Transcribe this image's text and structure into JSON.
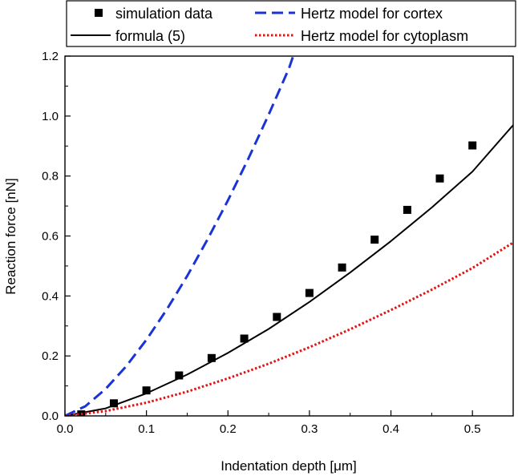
{
  "chart_data": {
    "type": "line",
    "title": "",
    "xlabel_prefix": "Indentation depth [",
    "xlabel_unit": "μm",
    "xlabel_suffix": "]",
    "ylabel": "Reaction force [nN]",
    "xlim": [
      0,
      0.55
    ],
    "ylim": [
      0,
      1.2
    ],
    "xticks": [
      0.0,
      0.1,
      0.2,
      0.3,
      0.4,
      0.5
    ],
    "yticks": [
      0.0,
      0.2,
      0.4,
      0.6,
      0.8,
      1.0,
      1.2
    ],
    "xtick_labels": [
      "0.0",
      "0.1",
      "0.2",
      "0.3",
      "0.4",
      "0.5"
    ],
    "ytick_labels": [
      "0.0",
      "0.2",
      "0.4",
      "0.6",
      "0.8",
      "1.0",
      "1.2"
    ],
    "grid": false,
    "legend_position": "top",
    "series": [
      {
        "name": "simulation data",
        "kind": "markers",
        "color": "#000000",
        "x": [
          0.02,
          0.06,
          0.1,
          0.14,
          0.18,
          0.22,
          0.26,
          0.3,
          0.34,
          0.38,
          0.42,
          0.46,
          0.5
        ],
        "y": [
          0.005,
          0.042,
          0.085,
          0.135,
          0.193,
          0.258,
          0.33,
          0.41,
          0.495,
          0.588,
          0.687,
          0.792,
          0.902
        ]
      },
      {
        "name": "formula (5)",
        "kind": "line",
        "style": "solid",
        "color": "#000000",
        "x": [
          0.0,
          0.05,
          0.1,
          0.15,
          0.2,
          0.25,
          0.3,
          0.35,
          0.4,
          0.45,
          0.5,
          0.55
        ],
        "y": [
          0.0,
          0.025,
          0.075,
          0.138,
          0.21,
          0.29,
          0.38,
          0.478,
          0.583,
          0.695,
          0.815,
          0.97
        ]
      },
      {
        "name": "Hertz model for cortex",
        "kind": "line",
        "style": "dashed",
        "color": "#1a33d6",
        "x": [
          0.0,
          0.025,
          0.05,
          0.075,
          0.1,
          0.125,
          0.15,
          0.175,
          0.2,
          0.225,
          0.25,
          0.275,
          0.28
        ],
        "y": [
          0.0,
          0.032,
          0.09,
          0.165,
          0.254,
          0.355,
          0.467,
          0.589,
          0.719,
          0.858,
          1.005,
          1.16,
          1.2
        ]
      },
      {
        "name": "Hertz model for cytoplasm",
        "kind": "line",
        "style": "dotted",
        "color": "#e01414",
        "x": [
          0.0,
          0.05,
          0.1,
          0.15,
          0.2,
          0.25,
          0.3,
          0.35,
          0.4,
          0.45,
          0.5,
          0.55
        ],
        "y": [
          0.0,
          0.016,
          0.044,
          0.081,
          0.125,
          0.174,
          0.229,
          0.289,
          0.353,
          0.421,
          0.493,
          0.578
        ]
      }
    ]
  }
}
